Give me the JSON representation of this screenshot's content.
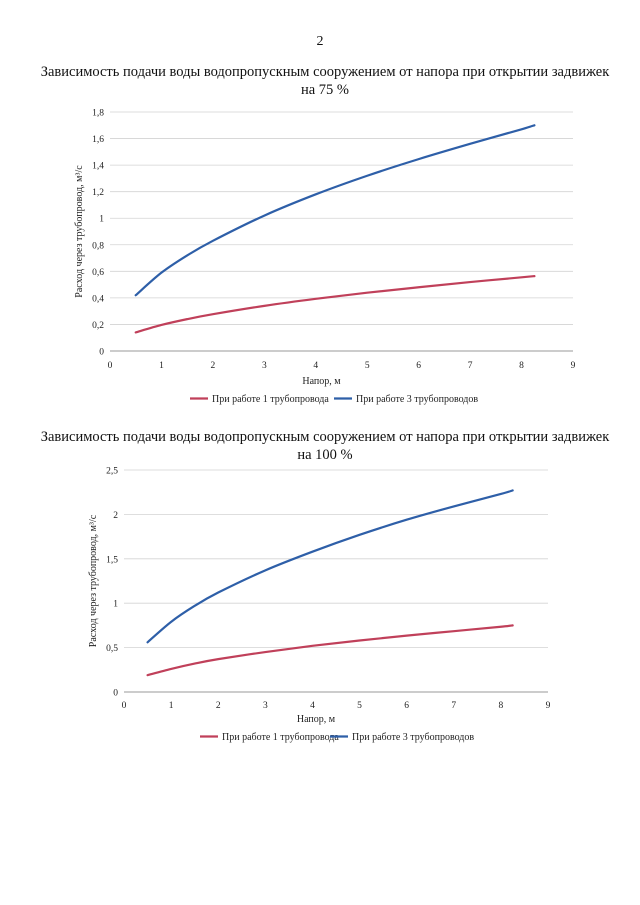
{
  "page": {
    "number": "2"
  },
  "chart_data": [
    {
      "type": "line",
      "title": "Зависимость подачи воды водопропускным сооружением от напора при открытии задвижек на 75 %",
      "xlabel": "Напор, м",
      "ylabel": "Расход через трубопровод, м³/с",
      "xlim": [
        0,
        9
      ],
      "ylim": [
        0,
        1.8
      ],
      "xticks": [
        "0",
        "1",
        "2",
        "3",
        "4",
        "5",
        "6",
        "7",
        "8",
        "9"
      ],
      "yticks": [
        "0",
        "0,2",
        "0,4",
        "0,6",
        "0,8",
        "1",
        "1,2",
        "1,4",
        "1,6",
        "1,8"
      ],
      "grid": true,
      "legend_position": "bottom",
      "series": [
        {
          "name": "При работе 1 трубопровода",
          "color": "#c0405a",
          "x": [
            0.5,
            1,
            1.5,
            2,
            3,
            4,
            5,
            6,
            7,
            8,
            8.25
          ],
          "y": [
            0.14,
            0.196,
            0.24,
            0.277,
            0.34,
            0.393,
            0.439,
            0.48,
            0.519,
            0.555,
            0.564
          ]
        },
        {
          "name": "При работе 3 трубопроводов",
          "color": "#2e5fa8",
          "x": [
            0.5,
            1,
            1.5,
            2,
            3,
            4,
            5,
            6,
            7,
            8,
            8.25
          ],
          "y": [
            0.42,
            0.59,
            0.72,
            0.83,
            1.02,
            1.18,
            1.32,
            1.445,
            1.56,
            1.67,
            1.7
          ]
        }
      ]
    },
    {
      "type": "line",
      "title": "Зависимость подачи воды водопропускным сооружением от напора при открытии задвижек на 100 %",
      "xlabel": "Напор, м",
      "ylabel": "Расход через трубопровод, м³/с",
      "xlim": [
        0,
        9
      ],
      "ylim": [
        0,
        2.5
      ],
      "xticks": [
        "0",
        "1",
        "2",
        "3",
        "4",
        "5",
        "6",
        "7",
        "8",
        "9"
      ],
      "yticks": [
        "0",
        "0,5",
        "1",
        "1,5",
        "2",
        "2,5"
      ],
      "grid": true,
      "legend_position": "bottom",
      "series": [
        {
          "name": "При работе 1 трубопровода",
          "color": "#c0405a",
          "x": [
            0.5,
            1,
            1.5,
            2,
            3,
            4,
            5,
            6,
            7,
            8,
            8.25
          ],
          "y": [
            0.19,
            0.26,
            0.32,
            0.37,
            0.45,
            0.52,
            0.58,
            0.635,
            0.685,
            0.735,
            0.75
          ]
        },
        {
          "name": "При работе 3 трубопроводов",
          "color": "#2e5fa8",
          "x": [
            0.5,
            1,
            1.5,
            2,
            3,
            4,
            5,
            6,
            7,
            8,
            8.25
          ],
          "y": [
            0.56,
            0.79,
            0.97,
            1.12,
            1.37,
            1.58,
            1.77,
            1.94,
            2.09,
            2.23,
            2.27
          ]
        }
      ]
    }
  ]
}
